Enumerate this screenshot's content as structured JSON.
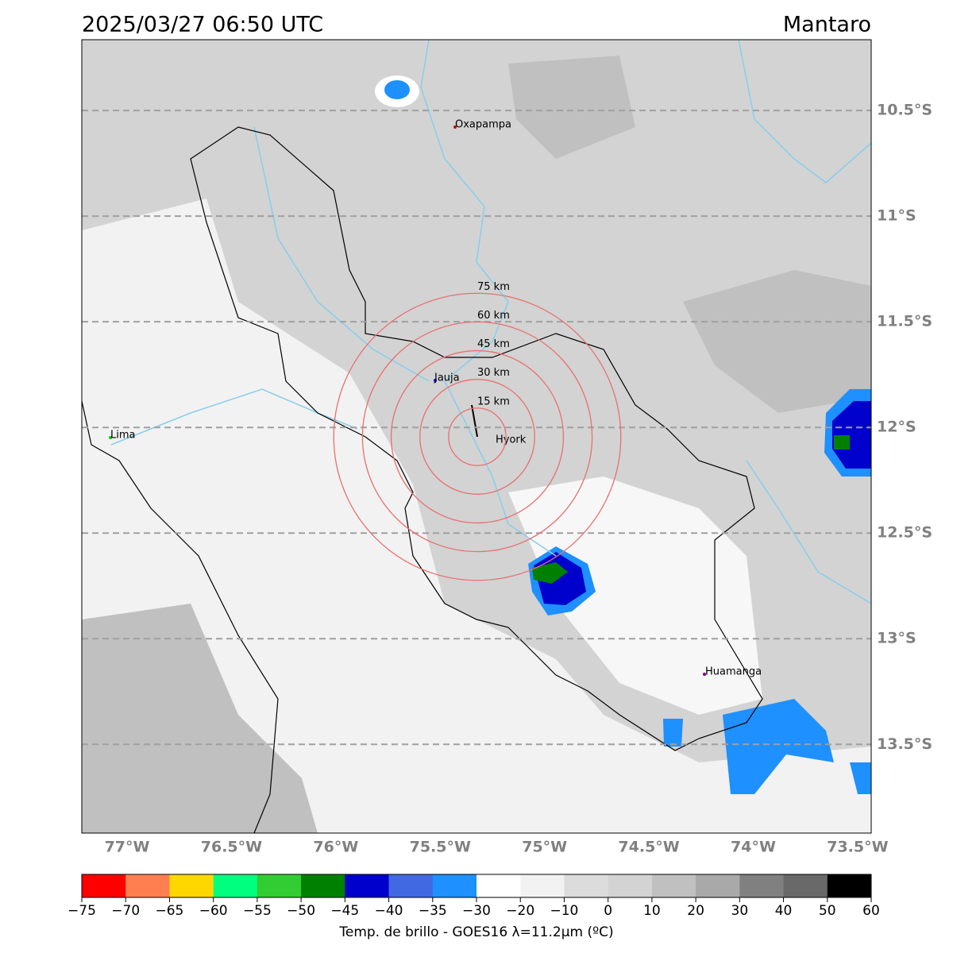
{
  "header": {
    "title": "2025/03/27 06:50 UTC",
    "region": "Mantaro"
  },
  "map": {
    "lonlim": [
      -77.217,
      -73.435
    ],
    "latlim": [
      -13.92,
      -10.165
    ],
    "lon_ticks": [
      {
        "value": -77,
        "label": "77°W"
      },
      {
        "value": -76.5,
        "label": "76.5°W"
      },
      {
        "value": -76,
        "label": "76°W"
      },
      {
        "value": -75.5,
        "label": "75.5°W"
      },
      {
        "value": -75,
        "label": "75°W"
      },
      {
        "value": -74.5,
        "label": "74.5°W"
      },
      {
        "value": -74,
        "label": "74°W"
      },
      {
        "value": -73.5,
        "label": "73.5°W"
      }
    ],
    "lat_ticks": [
      {
        "value": -10.5,
        "label": "10.5°S"
      },
      {
        "value": -11,
        "label": "11°S"
      },
      {
        "value": -11.5,
        "label": "11.5°S"
      },
      {
        "value": -12,
        "label": "12°S"
      },
      {
        "value": -12.5,
        "label": "12.5°S"
      },
      {
        "value": -13,
        "label": "13°S"
      },
      {
        "value": -13.5,
        "label": "13.5°S"
      }
    ],
    "grid": true
  },
  "cities": [
    "Oxapampa",
    "Jauja",
    "Hyork",
    "Lima",
    "Huamanga"
  ],
  "rings": [
    {
      "value": 15,
      "label": "15 km"
    },
    {
      "value": 30,
      "label": "30 km"
    },
    {
      "value": 45,
      "label": "45 km"
    },
    {
      "value": 60,
      "label": "60 km"
    },
    {
      "value": 75,
      "label": "75 km"
    }
  ],
  "colorbar": {
    "label": "Temp. de brillo - GOES16 λ=11.2μm (ºC)",
    "boundaries": [
      {
        "value": -75,
        "label": "−75"
      },
      {
        "value": -70,
        "label": "−70"
      },
      {
        "value": -65,
        "label": "−65"
      },
      {
        "value": -60,
        "label": "−60"
      },
      {
        "value": -55,
        "label": "−55"
      },
      {
        "value": -50,
        "label": "−50"
      },
      {
        "value": -45,
        "label": "−45"
      },
      {
        "value": -40,
        "label": "−40"
      },
      {
        "value": -35,
        "label": "−35"
      },
      {
        "value": -30,
        "label": "−30"
      },
      {
        "value": -20,
        "label": "−20"
      },
      {
        "value": -10,
        "label": "−10"
      },
      0,
      10,
      20,
      30,
      40,
      50,
      60
    ],
    "colors": [
      "#ff0000",
      "#ff7f50",
      "#ffd700",
      "#00ff7f",
      "#32cd32",
      "#008000",
      "#0000cd",
      "#4169e1",
      "#1e90ff",
      "#ffffff",
      "#f2f2f2",
      "#dcdcdc",
      "#d3d3d3",
      "#c0c0c0",
      "#a9a9a9",
      "#808080",
      "#696969",
      "#000000"
    ]
  }
}
